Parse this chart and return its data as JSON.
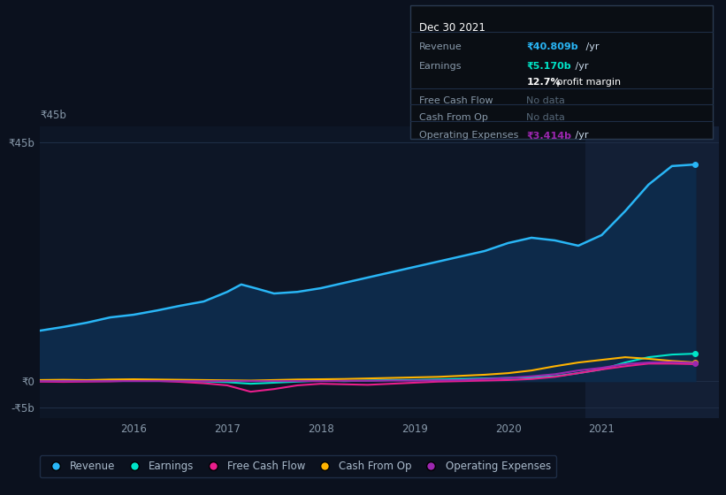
{
  "background_color": "#0b111e",
  "plot_bg_color": "#0d1626",
  "highlight_color": "#131f35",
  "grid_color": "#1e2d45",
  "title_box": {
    "date": "Dec 30 2021",
    "revenue_label": "Revenue",
    "revenue_value": "₹40.809b",
    "revenue_suffix": " /yr",
    "earnings_label": "Earnings",
    "earnings_value": "₹5.170b",
    "earnings_suffix": " /yr",
    "profit_margin_bold": "12.7%",
    "profit_margin_rest": " profit margin",
    "fcf_label": "Free Cash Flow",
    "fcf_value": "No data",
    "cfo_label": "Cash From Op",
    "cfo_value": "No data",
    "opex_label": "Operating Expenses",
    "opex_value": "₹3.414b",
    "opex_suffix": " /yr"
  },
  "ylim": [
    -7,
    48
  ],
  "ytick_positions": [
    -5,
    0,
    45
  ],
  "ytick_labels": [
    "-₹5b",
    "₹0",
    "₹45b"
  ],
  "highlight_xstart": 2020.83,
  "highlight_xend": 2022.25,
  "revenue_x": [
    2015.0,
    2015.25,
    2015.5,
    2015.75,
    2016.0,
    2016.25,
    2016.5,
    2016.75,
    2017.0,
    2017.15,
    2017.3,
    2017.5,
    2017.75,
    2018.0,
    2018.25,
    2018.5,
    2018.75,
    2019.0,
    2019.25,
    2019.5,
    2019.75,
    2020.0,
    2020.25,
    2020.5,
    2020.75,
    2021.0,
    2021.25,
    2021.5,
    2021.75,
    2022.0
  ],
  "revenue_y": [
    9.5,
    10.2,
    11.0,
    12.0,
    12.5,
    13.3,
    14.2,
    15.0,
    16.8,
    18.2,
    17.5,
    16.5,
    16.8,
    17.5,
    18.5,
    19.5,
    20.5,
    21.5,
    22.5,
    23.5,
    24.5,
    26.0,
    27.0,
    26.5,
    25.5,
    27.5,
    32.0,
    37.0,
    40.5,
    40.8
  ],
  "earnings_x": [
    2015.0,
    2015.25,
    2015.5,
    2015.75,
    2016.0,
    2016.25,
    2016.5,
    2016.75,
    2017.0,
    2017.25,
    2017.5,
    2017.75,
    2018.0,
    2018.25,
    2018.5,
    2018.75,
    2019.0,
    2019.25,
    2019.5,
    2019.75,
    2020.0,
    2020.25,
    2020.5,
    2020.75,
    2021.0,
    2021.25,
    2021.5,
    2021.75,
    2022.0
  ],
  "earnings_y": [
    0.0,
    0.1,
    0.1,
    0.2,
    0.15,
    0.1,
    0.05,
    -0.05,
    -0.2,
    -0.5,
    -0.3,
    -0.1,
    0.1,
    0.0,
    0.1,
    0.2,
    0.2,
    0.3,
    0.4,
    0.5,
    0.6,
    0.7,
    0.9,
    1.5,
    2.2,
    3.5,
    4.5,
    5.0,
    5.17
  ],
  "fcf_x": [
    2015.0,
    2015.25,
    2015.5,
    2015.75,
    2016.0,
    2016.25,
    2016.5,
    2016.75,
    2017.0,
    2017.25,
    2017.5,
    2017.75,
    2018.0,
    2018.25,
    2018.5,
    2018.75,
    2019.0,
    2019.25,
    2019.5,
    2019.75,
    2020.0,
    2020.25,
    2020.5,
    2020.75,
    2021.0,
    2021.25,
    2021.5,
    2021.75,
    2022.0
  ],
  "fcf_y": [
    -0.1,
    -0.15,
    -0.1,
    -0.05,
    0.1,
    0.05,
    -0.15,
    -0.4,
    -0.8,
    -2.0,
    -1.5,
    -0.8,
    -0.5,
    -0.6,
    -0.7,
    -0.5,
    -0.3,
    -0.1,
    0.0,
    0.1,
    0.2,
    0.4,
    0.8,
    1.5,
    2.2,
    2.8,
    3.3,
    3.3,
    3.2
  ],
  "cfo_x": [
    2015.0,
    2015.25,
    2015.5,
    2015.75,
    2016.0,
    2016.25,
    2016.5,
    2016.75,
    2017.0,
    2017.25,
    2017.5,
    2017.75,
    2018.0,
    2018.25,
    2018.5,
    2018.75,
    2019.0,
    2019.25,
    2019.5,
    2019.75,
    2020.0,
    2020.25,
    2020.5,
    2020.75,
    2021.0,
    2021.25,
    2021.5,
    2021.75,
    2022.0
  ],
  "cfo_y": [
    0.2,
    0.25,
    0.2,
    0.3,
    0.35,
    0.3,
    0.25,
    0.2,
    0.15,
    0.1,
    0.2,
    0.3,
    0.35,
    0.4,
    0.5,
    0.6,
    0.7,
    0.8,
    1.0,
    1.2,
    1.5,
    2.0,
    2.8,
    3.5,
    4.0,
    4.5,
    4.2,
    3.8,
    3.5
  ],
  "opex_x": [
    2015.0,
    2015.25,
    2015.5,
    2015.75,
    2016.0,
    2016.25,
    2016.5,
    2016.75,
    2017.0,
    2017.25,
    2017.5,
    2017.75,
    2018.0,
    2018.25,
    2018.5,
    2018.75,
    2019.0,
    2019.25,
    2019.5,
    2019.75,
    2020.0,
    2020.25,
    2020.5,
    2020.75,
    2021.0,
    2021.25,
    2021.5,
    2021.75,
    2022.0
  ],
  "opex_y": [
    0.0,
    0.0,
    0.0,
    0.0,
    0.0,
    0.0,
    0.0,
    0.0,
    0.0,
    0.0,
    0.0,
    0.0,
    0.0,
    0.05,
    0.05,
    0.1,
    0.1,
    0.15,
    0.2,
    0.4,
    0.6,
    0.9,
    1.3,
    2.0,
    2.5,
    3.2,
    3.5,
    3.6,
    3.41
  ],
  "revenue_color": "#29b6f6",
  "revenue_fill": "#0d2a4a",
  "earnings_color": "#00e5c8",
  "fcf_color": "#e91e8c",
  "cfo_color": "#ffb300",
  "opex_color": "#9c27b0",
  "xticks": [
    2016,
    2017,
    2018,
    2019,
    2020,
    2021
  ],
  "xlim": [
    2015.0,
    2022.25
  ],
  "legend_items": [
    "Revenue",
    "Earnings",
    "Free Cash Flow",
    "Cash From Op",
    "Operating Expenses"
  ],
  "legend_colors": [
    "#29b6f6",
    "#00e5c8",
    "#e91e8c",
    "#ffb300",
    "#9c27b0"
  ]
}
